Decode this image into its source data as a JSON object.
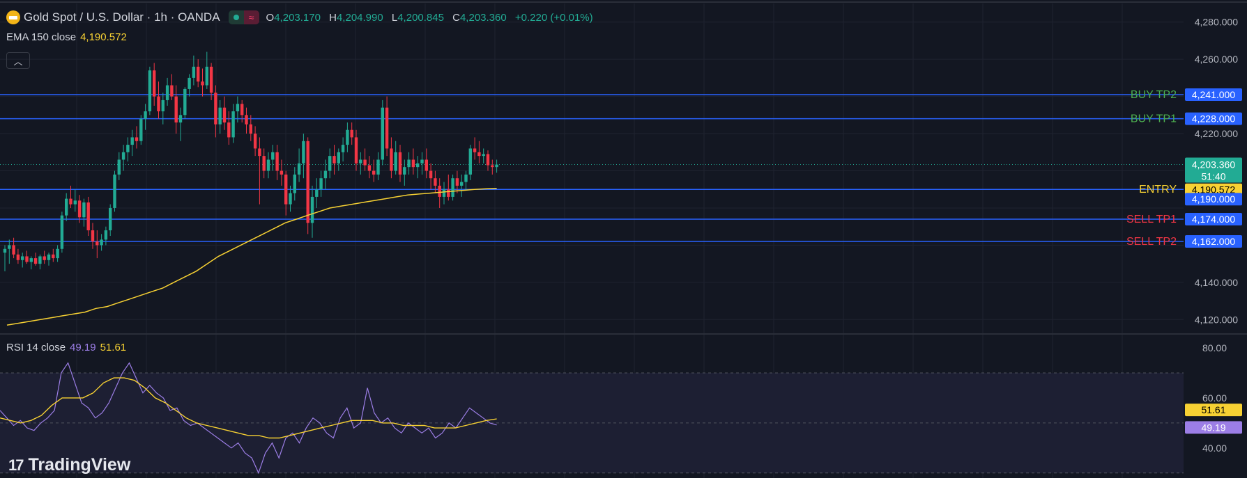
{
  "header": {
    "symbol_title": "Gold Spot / U.S. Dollar · 1h · OANDA",
    "open_label": "O",
    "open": "4,203.170",
    "high_label": "H",
    "high": "4,204.990",
    "low_label": "L",
    "low": "4,200.845",
    "close_label": "C",
    "close": "4,203.360",
    "change": "+0.220 (+0.01%)"
  },
  "ema": {
    "label": "EMA 150 close",
    "value": "4,190.572"
  },
  "rsi": {
    "label": "RSI 14 close",
    "value": "49.19",
    "ma_value": "51.61"
  },
  "watermark": "TradingView",
  "current_price": {
    "label": "4,203.360",
    "countdown": "51:40"
  },
  "colors": {
    "background": "#131722",
    "up": "#22ab94",
    "down": "#f23645",
    "level_line": "#2962ff",
    "ema": "#f7d133",
    "rsi": "#9c7ee6",
    "rsi_ma": "#f7d133"
  },
  "chart_data": [
    {
      "type": "candlestick",
      "ylim": [
        4113,
        4290
      ],
      "y_ticks": [
        "4,120.000",
        "4,140.000",
        "4,220.000",
        "4,260.000",
        "4,280.000"
      ],
      "y_tick_values": [
        4120,
        4140,
        4220,
        4260,
        4280
      ],
      "levels": [
        {
          "name": "BUY TP2",
          "value": 4241,
          "label": "4,241.000",
          "text_color": "#4caf50"
        },
        {
          "name": "BUY TP1",
          "value": 4228,
          "label": "4,228.000",
          "text_color": "#4caf50"
        },
        {
          "name": "ENTRY",
          "value": 4190,
          "label": "4,190.000",
          "text_color": "#f7d133"
        },
        {
          "name": "SELL TP1",
          "value": 4174,
          "label": "4,174.000",
          "text_color": "#f23645"
        },
        {
          "name": "SELL TP2",
          "value": 4162,
          "label": "4,162.000",
          "text_color": "#f23645"
        }
      ],
      "ema_label": "4,190.572",
      "ema_value": 4190.572,
      "last_close": 4203.36,
      "candles": [
        [
          4156,
          4160,
          4146,
          4158
        ],
        [
          4158,
          4163,
          4150,
          4160
        ],
        [
          4160,
          4164,
          4153,
          4155
        ],
        [
          4155,
          4158,
          4150,
          4152
        ],
        [
          4152,
          4156,
          4148,
          4154
        ],
        [
          4154,
          4157,
          4150,
          4151
        ],
        [
          4151,
          4154,
          4147,
          4153
        ],
        [
          4153,
          4156,
          4149,
          4150
        ],
        [
          4150,
          4155,
          4147,
          4154
        ],
        [
          4154,
          4157,
          4150,
          4152
        ],
        [
          4152,
          4156,
          4149,
          4155
        ],
        [
          4155,
          4158,
          4151,
          4153
        ],
        [
          4153,
          4160,
          4151,
          4158
        ],
        [
          4158,
          4178,
          4156,
          4176
        ],
        [
          4176,
          4188,
          4173,
          4185
        ],
        [
          4185,
          4192,
          4180,
          4182
        ],
        [
          4182,
          4190,
          4178,
          4184
        ],
        [
          4184,
          4187,
          4172,
          4175
        ],
        [
          4175,
          4185,
          4170,
          4183
        ],
        [
          4183,
          4186,
          4165,
          4168
        ],
        [
          4168,
          4172,
          4158,
          4162
        ],
        [
          4162,
          4168,
          4153,
          4160
        ],
        [
          4160,
          4166,
          4157,
          4163
        ],
        [
          4163,
          4170,
          4160,
          4168
        ],
        [
          4168,
          4182,
          4165,
          4180
        ],
        [
          4180,
          4200,
          4178,
          4198
        ],
        [
          4198,
          4210,
          4195,
          4206
        ],
        [
          4206,
          4214,
          4200,
          4210
        ],
        [
          4210,
          4218,
          4205,
          4214
        ],
        [
          4214,
          4222,
          4208,
          4218
        ],
        [
          4218,
          4224,
          4212,
          4216
        ],
        [
          4216,
          4230,
          4214,
          4228
        ],
        [
          4228,
          4236,
          4222,
          4232
        ],
        [
          4232,
          4256,
          4230,
          4254
        ],
        [
          4254,
          4258,
          4235,
          4240
        ],
        [
          4240,
          4248,
          4228,
          4232
        ],
        [
          4232,
          4242,
          4225,
          4238
        ],
        [
          4238,
          4250,
          4235,
          4246
        ],
        [
          4246,
          4252,
          4238,
          4240
        ],
        [
          4240,
          4246,
          4220,
          4226
        ],
        [
          4226,
          4234,
          4216,
          4230
        ],
        [
          4230,
          4245,
          4228,
          4244
        ],
        [
          4244,
          4252,
          4240,
          4250
        ],
        [
          4250,
          4262,
          4246,
          4256
        ],
        [
          4256,
          4260,
          4245,
          4248
        ],
        [
          4248,
          4255,
          4240,
          4246
        ],
        [
          4246,
          4264,
          4244,
          4256
        ],
        [
          4256,
          4258,
          4238,
          4242
        ],
        [
          4242,
          4246,
          4218,
          4225
        ],
        [
          4225,
          4238,
          4220,
          4234
        ],
        [
          4234,
          4240,
          4222,
          4226
        ],
        [
          4226,
          4232,
          4214,
          4218
        ],
        [
          4218,
          4236,
          4215,
          4232
        ],
        [
          4232,
          4240,
          4226,
          4236
        ],
        [
          4236,
          4238,
          4226,
          4230
        ],
        [
          4230,
          4234,
          4220,
          4225
        ],
        [
          4225,
          4230,
          4216,
          4220
        ],
        [
          4220,
          4224,
          4208,
          4212
        ],
        [
          4212,
          4218,
          4182,
          4208
        ],
        [
          4208,
          4212,
          4196,
          4200
        ],
        [
          4200,
          4210,
          4196,
          4206
        ],
        [
          4206,
          4214,
          4200,
          4210
        ],
        [
          4210,
          4214,
          4195,
          4200
        ],
        [
          4200,
          4206,
          4192,
          4198
        ],
        [
          4198,
          4200,
          4176,
          4182
        ],
        [
          4182,
          4192,
          4178,
          4188
        ],
        [
          4188,
          4202,
          4184,
          4198
        ],
        [
          4198,
          4212,
          4194,
          4204
        ],
        [
          4204,
          4220,
          4196,
          4216
        ],
        [
          4216,
          4218,
          4166,
          4172
        ],
        [
          4172,
          4192,
          4164,
          4186
        ],
        [
          4186,
          4196,
          4180,
          4190
        ],
        [
          4190,
          4200,
          4186,
          4196
        ],
        [
          4196,
          4206,
          4190,
          4200
        ],
        [
          4200,
          4212,
          4196,
          4208
        ],
        [
          4208,
          4214,
          4198,
          4204
        ],
        [
          4204,
          4212,
          4200,
          4210
        ],
        [
          4210,
          4218,
          4205,
          4214
        ],
        [
          4214,
          4226,
          4210,
          4222
        ],
        [
          4222,
          4226,
          4214,
          4218
        ],
        [
          4218,
          4222,
          4200,
          4204
        ],
        [
          4204,
          4210,
          4198,
          4206
        ],
        [
          4206,
          4212,
          4200,
          4203
        ],
        [
          4203,
          4208,
          4196,
          4200
        ],
        [
          4200,
          4206,
          4194,
          4198
        ],
        [
          4198,
          4210,
          4195,
          4206
        ],
        [
          4206,
          4238,
          4203,
          4234
        ],
        [
          4234,
          4240,
          4208,
          4212
        ],
        [
          4212,
          4218,
          4196,
          4200
        ],
        [
          4200,
          4216,
          4198,
          4210
        ],
        [
          4210,
          4214,
          4194,
          4198
        ],
        [
          4198,
          4206,
          4192,
          4202
        ],
        [
          4202,
          4210,
          4198,
          4206
        ],
        [
          4206,
          4212,
          4198,
          4202
        ],
        [
          4202,
          4208,
          4196,
          4204
        ],
        [
          4204,
          4210,
          4198,
          4206
        ],
        [
          4206,
          4212,
          4196,
          4200
        ],
        [
          4200,
          4204,
          4190,
          4196
        ],
        [
          4196,
          4200,
          4188,
          4192
        ],
        [
          4192,
          4196,
          4180,
          4186
        ],
        [
          4186,
          4194,
          4182,
          4190
        ],
        [
          4190,
          4198,
          4184,
          4186
        ],
        [
          4186,
          4198,
          4184,
          4196
        ],
        [
          4196,
          4200,
          4188,
          4192
        ],
        [
          4192,
          4198,
          4186,
          4194
        ],
        [
          4194,
          4200,
          4190,
          4198
        ],
        [
          4198,
          4214,
          4195,
          4212
        ],
        [
          4212,
          4218,
          4206,
          4210
        ],
        [
          4210,
          4216,
          4204,
          4208
        ],
        [
          4208,
          4212,
          4204,
          4209
        ],
        [
          4209,
          4211,
          4200,
          4203
        ],
        [
          4203,
          4206,
          4198,
          4202
        ],
        [
          4202,
          4206,
          4199,
          4203.36
        ]
      ],
      "ema_series": [
        4117,
        4118,
        4119,
        4120,
        4121,
        4122,
        4123,
        4124,
        4126,
        4127,
        4129,
        4131,
        4133,
        4135,
        4137,
        4140,
        4143,
        4146,
        4150,
        4154,
        4157,
        4160,
        4163,
        4166,
        4169,
        4172,
        4174,
        4176,
        4178,
        4180,
        4181,
        4182,
        4183,
        4184,
        4185,
        4186,
        4187,
        4187.5,
        4188,
        4188.5,
        4189,
        4189.5,
        4190,
        4190.3,
        4190.572
      ]
    },
    {
      "type": "line",
      "ylim": [
        28,
        85
      ],
      "y_ticks": [
        "80.00",
        "60.00",
        "40.00"
      ],
      "y_tick_values": [
        80,
        60,
        40
      ],
      "bands": [
        70,
        50,
        30
      ],
      "rsi_label": "49.19",
      "rsi_ma_label": "51.61",
      "series": [
        {
          "name": "RSI 14 close",
          "values": [
            55,
            52,
            49,
            51,
            48,
            47,
            50,
            52,
            55,
            70,
            74,
            66,
            58,
            56,
            52,
            54,
            58,
            64,
            70,
            74,
            68,
            62,
            65,
            62,
            60,
            55,
            56,
            51,
            49,
            50,
            48,
            46,
            44,
            42,
            40,
            42,
            38,
            36,
            30,
            38,
            42,
            36,
            44,
            46,
            42,
            48,
            52,
            50,
            46,
            44,
            52,
            56,
            48,
            50,
            64,
            54,
            50,
            52,
            48,
            46,
            50,
            48,
            46,
            48,
            44,
            46,
            50,
            48,
            52,
            56,
            54,
            52,
            50,
            49.19
          ]
        },
        {
          "name": "RSI MA",
          "values": [
            52,
            51,
            50,
            51,
            53,
            57,
            60,
            60,
            60,
            62,
            66,
            68,
            68,
            67,
            64,
            60,
            58,
            55,
            52,
            50,
            49,
            48,
            47,
            46,
            45,
            45,
            44,
            44,
            45,
            46,
            47,
            48,
            49,
            50,
            51,
            51,
            51,
            50,
            50,
            49,
            49,
            49,
            48,
            48,
            48,
            49,
            50,
            51,
            51.61
          ]
        }
      ]
    }
  ]
}
